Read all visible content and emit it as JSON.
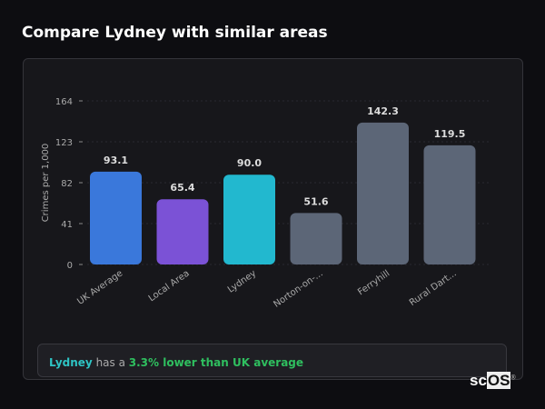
{
  "title": "Compare Lydney with similar areas",
  "chart_data": {
    "type": "bar",
    "title": "",
    "ylabel": "Crimes per 1,000",
    "ylim": [
      0,
      164
    ],
    "yticks": [
      0,
      41,
      82,
      123,
      164
    ],
    "grid": true,
    "categories": [
      "UK Average",
      "Local Area",
      "Lydney",
      "Norton-on-...",
      "Ferryhill",
      "Rural Dart..."
    ],
    "values": [
      93.1,
      65.4,
      90.0,
      51.6,
      142.3,
      119.5
    ],
    "value_labels": [
      "93.1",
      "65.4",
      "90.0",
      "51.6",
      "142.3",
      "119.5"
    ],
    "colors": [
      "#3a78db",
      "#7b52d6",
      "#22b8cf",
      "#5c6677",
      "#5c6677",
      "#5c6677"
    ]
  },
  "insight": {
    "subject": "Lydney",
    "middle": " has a ",
    "highlight": "3.3% lower than UK average"
  },
  "logo": "scOS"
}
